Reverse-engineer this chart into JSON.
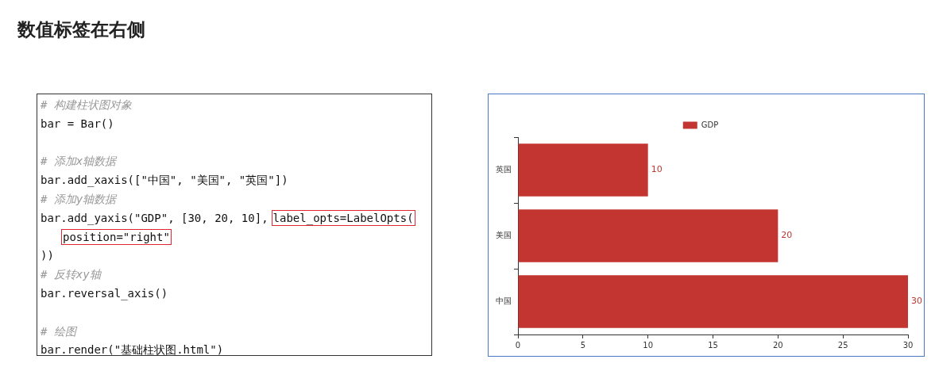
{
  "chart_data": [
    {
      "type": "other",
      "title": "数值标签在右侧",
      "annotations": [
        "# 构建柱状图对象",
        "bar = Bar()",
        "# 添加x轴数据",
        "bar.add_xaxis([\"中国\", \"美国\", \"英国\"])",
        "# 添加y轴数据",
        "bar.add_yaxis(\"GDP\", [30, 20, 10],",
        "label_opts=LabelOpts(",
        "position=\"right\"",
        "))",
        "# 反转xy轴",
        "bar.reversal_axis()",
        "# 绘图",
        "bar.render(\"基础柱状图.html\")"
      ]
    },
    {
      "type": "bar",
      "orientation": "horizontal",
      "categories": [
        "英国",
        "美国",
        "中国"
      ],
      "series": [
        {
          "name": "GDP",
          "color": "#c23531",
          "values": [
            10,
            20,
            30
          ]
        }
      ],
      "xlim": [
        0,
        30
      ],
      "xticks": [
        0,
        5,
        10,
        15,
        20,
        25,
        30
      ],
      "data_labels": true,
      "legend": "top",
      "grid": false
    }
  ]
}
